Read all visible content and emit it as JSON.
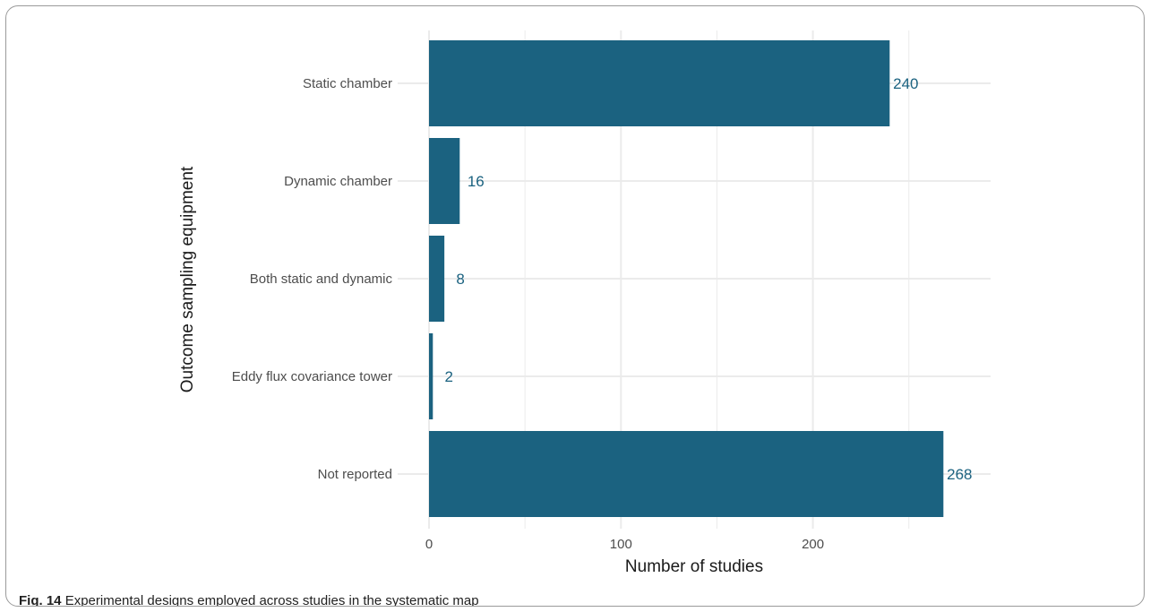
{
  "caption": {
    "label": "Fig. 14",
    "text": "Experimental designs employed across studies in the systematic map"
  },
  "chart_data": {
    "type": "bar",
    "orientation": "horizontal",
    "title": "",
    "xlabel": "Number of studies",
    "ylabel": "Outcome sampling equipment",
    "categories": [
      "Static chamber",
      "Dynamic chamber",
      "Both static and dynamic",
      "Eddy flux covariance tower",
      "Not reported"
    ],
    "values": [
      240,
      16,
      8,
      2,
      268
    ],
    "data_labels": [
      "240",
      "16",
      "8",
      "2",
      "268"
    ],
    "xlim": [
      0,
      293
    ],
    "x_ticks": [
      0,
      100,
      200
    ],
    "x_tick_labels": [
      "0",
      "100",
      "200"
    ],
    "grid": true,
    "legend": "none",
    "colors": {
      "bar": "#1b6280",
      "label": "#1b6280",
      "grid": "#ebebeb",
      "axis_text": "#4d4d4d",
      "axis_title": "#1a1a1a"
    }
  }
}
